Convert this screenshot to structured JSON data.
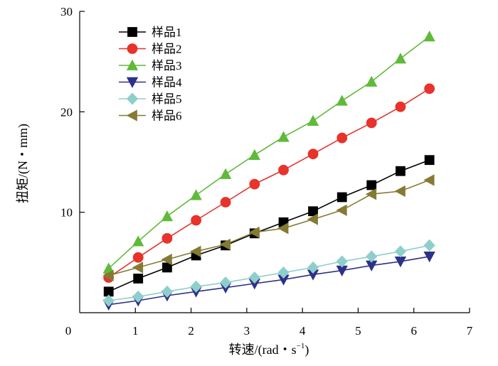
{
  "chart_data": {
    "type": "line",
    "title": "",
    "xlabel": "转速/(rad・s",
    "xlabel_sup": "−1",
    "xlabel_close": ")",
    "ylabel": "扭矩/(N・mm)",
    "xlim": [
      0,
      7
    ],
    "ylim": [
      0,
      30
    ],
    "x_ticks": [
      "0",
      "1",
      "2",
      "3",
      "4",
      "5",
      "6",
      "7"
    ],
    "y_ticks": [
      "10",
      "20",
      "30"
    ],
    "grid": false,
    "legend_position": "top-left",
    "x": [
      0.52,
      1.05,
      1.57,
      2.09,
      2.62,
      3.14,
      3.66,
      4.19,
      4.71,
      5.24,
      5.76,
      6.28
    ],
    "series": [
      {
        "name": "样品1",
        "color": "#000000",
        "marker": "square",
        "values": [
          2.1,
          3.4,
          4.5,
          5.7,
          6.7,
          7.9,
          9.0,
          10.1,
          11.5,
          12.7,
          14.1,
          15.2
        ]
      },
      {
        "name": "样品2",
        "color": "#e8322c",
        "marker": "circle",
        "values": [
          3.5,
          5.5,
          7.4,
          9.2,
          11.0,
          12.8,
          14.2,
          15.8,
          17.4,
          18.9,
          20.5,
          22.3
        ]
      },
      {
        "name": "样品3",
        "color": "#5fba3a",
        "marker": "triangle-up",
        "values": [
          4.4,
          7.1,
          9.6,
          11.7,
          13.8,
          15.7,
          17.5,
          19.1,
          21.1,
          23.0,
          25.3,
          27.5
        ]
      },
      {
        "name": "样品4",
        "color": "#2e3189",
        "marker": "triangle-down",
        "values": [
          0.8,
          1.2,
          1.7,
          2.1,
          2.5,
          2.9,
          3.3,
          3.8,
          4.2,
          4.7,
          5.1,
          5.6
        ]
      },
      {
        "name": "样品5",
        "color": "#8ecfcb",
        "marker": "diamond",
        "values": [
          1.2,
          1.6,
          2.1,
          2.6,
          3.0,
          3.5,
          4.0,
          4.5,
          5.1,
          5.6,
          6.1,
          6.7
        ]
      },
      {
        "name": "样品6",
        "color": "#857a33",
        "marker": "triangle-left",
        "values": [
          3.7,
          4.5,
          5.3,
          6.1,
          6.8,
          8.0,
          8.4,
          9.3,
          10.2,
          11.8,
          12.1,
          13.2
        ]
      }
    ]
  }
}
